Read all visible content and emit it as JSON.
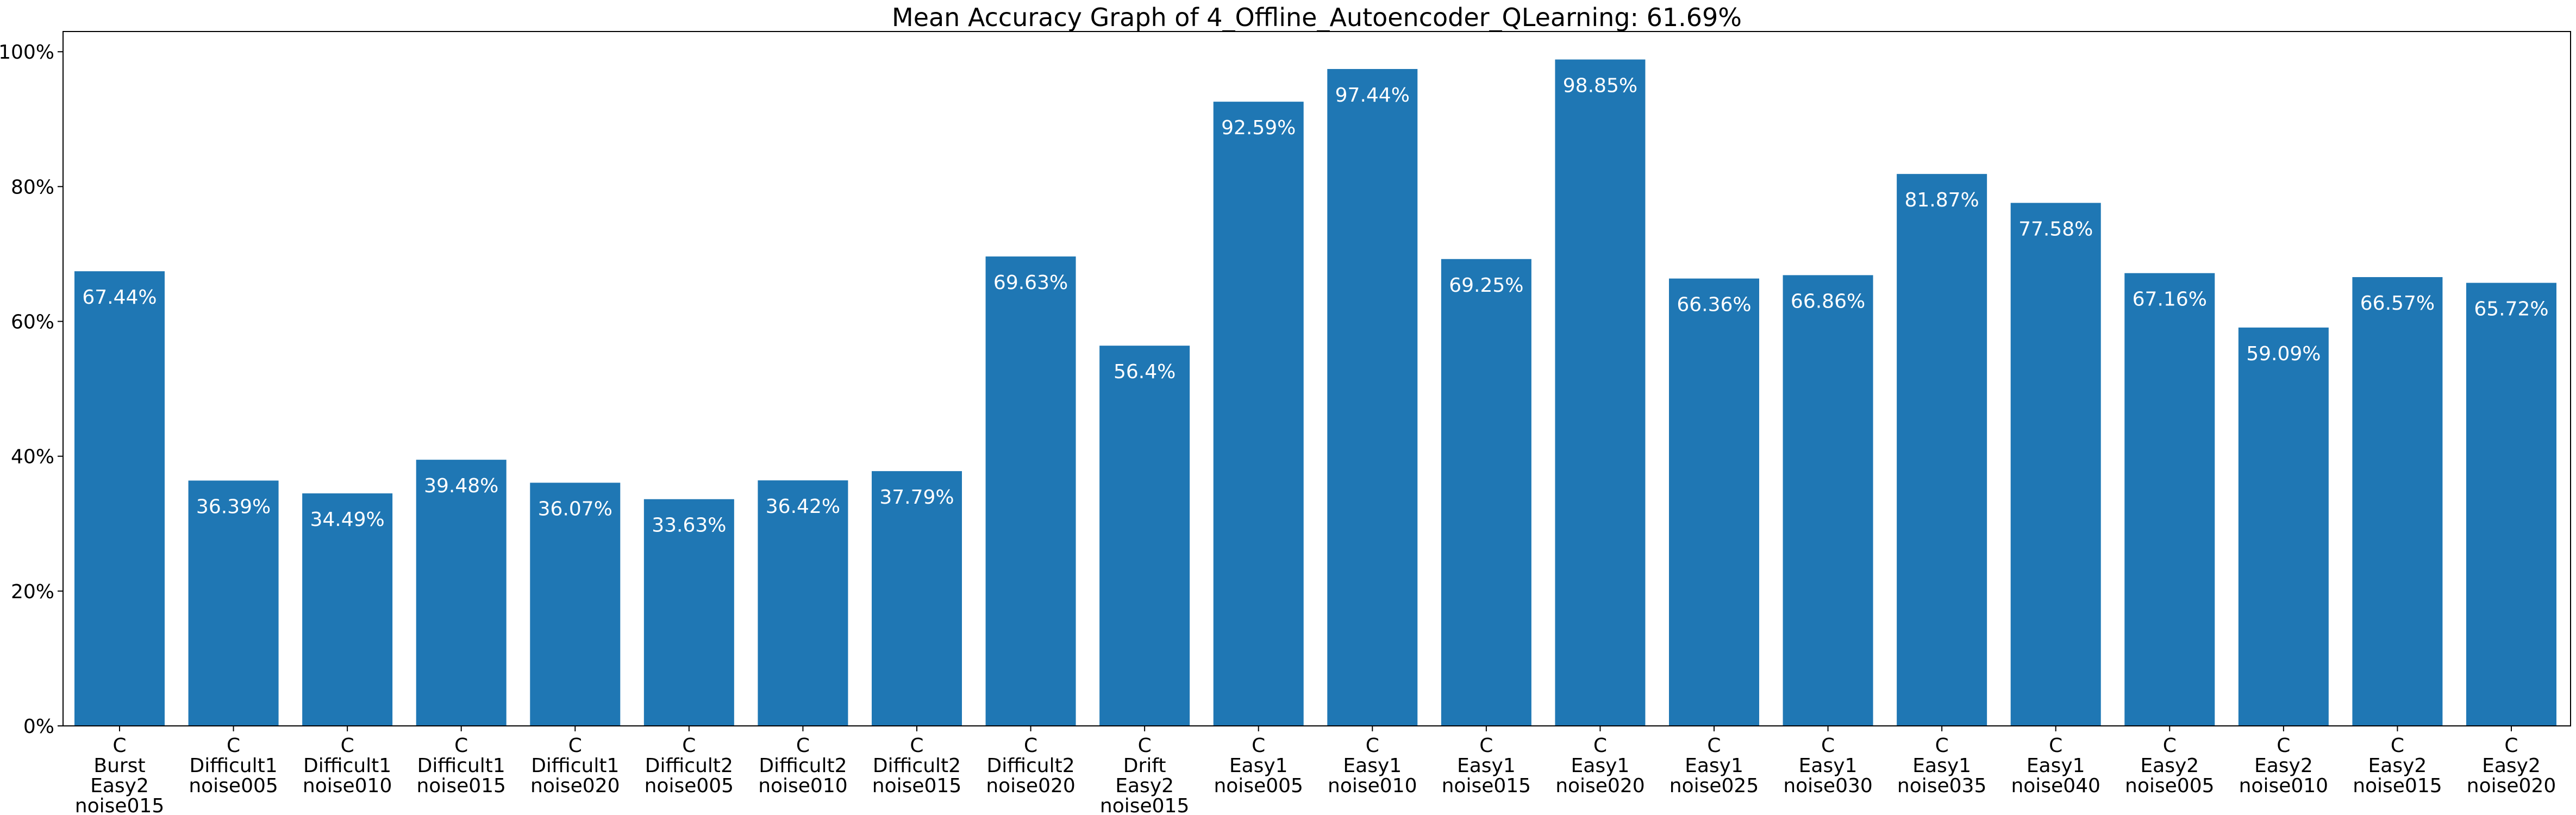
{
  "chart_data": {
    "type": "bar",
    "title": "Mean Accuracy Graph of 4_Offline_Autoencoder_QLearning: 61.69%",
    "xlabel": "",
    "ylabel": "",
    "ylim": [
      0,
      103
    ],
    "y_ticks": [
      "0%",
      "20%",
      "40%",
      "60%",
      "80%",
      "100%"
    ],
    "y_tick_values": [
      0,
      20,
      40,
      60,
      80,
      100
    ],
    "grid": false,
    "bar_color": "#1f77b4",
    "label_color": "#ffffff",
    "categories": [
      [
        "C",
        "Burst",
        "Easy2",
        "noise015"
      ],
      [
        "C",
        "Difficult1",
        "noise005"
      ],
      [
        "C",
        "Difficult1",
        "noise010"
      ],
      [
        "C",
        "Difficult1",
        "noise015"
      ],
      [
        "C",
        "Difficult1",
        "noise020"
      ],
      [
        "C",
        "Difficult2",
        "noise005"
      ],
      [
        "C",
        "Difficult2",
        "noise010"
      ],
      [
        "C",
        "Difficult2",
        "noise015"
      ],
      [
        "C",
        "Difficult2",
        "noise020"
      ],
      [
        "C",
        "Drift",
        "Easy2",
        "noise015"
      ],
      [
        "C",
        "Easy1",
        "noise005"
      ],
      [
        "C",
        "Easy1",
        "noise010"
      ],
      [
        "C",
        "Easy1",
        "noise015"
      ],
      [
        "C",
        "Easy1",
        "noise020"
      ],
      [
        "C",
        "Easy1",
        "noise025"
      ],
      [
        "C",
        "Easy1",
        "noise030"
      ],
      [
        "C",
        "Easy1",
        "noise035"
      ],
      [
        "C",
        "Easy1",
        "noise040"
      ],
      [
        "C",
        "Easy2",
        "noise005"
      ],
      [
        "C",
        "Easy2",
        "noise010"
      ],
      [
        "C",
        "Easy2",
        "noise015"
      ],
      [
        "C",
        "Easy2",
        "noise020"
      ]
    ],
    "values": [
      67.44,
      36.39,
      34.49,
      39.48,
      36.07,
      33.63,
      36.42,
      37.79,
      69.63,
      56.4,
      92.59,
      97.44,
      69.25,
      98.85,
      66.36,
      66.86,
      81.87,
      77.58,
      67.16,
      59.09,
      66.57,
      65.72
    ],
    "data_labels": [
      "67.44%",
      "36.39%",
      "34.49%",
      "39.48%",
      "36.07%",
      "33.63%",
      "36.42%",
      "37.79%",
      "69.63%",
      "56.4%",
      "92.59%",
      "97.44%",
      "69.25%",
      "98.85%",
      "66.36%",
      "66.86%",
      "81.87%",
      "77.58%",
      "67.16%",
      "59.09%",
      "66.57%",
      "65.72%"
    ]
  }
}
